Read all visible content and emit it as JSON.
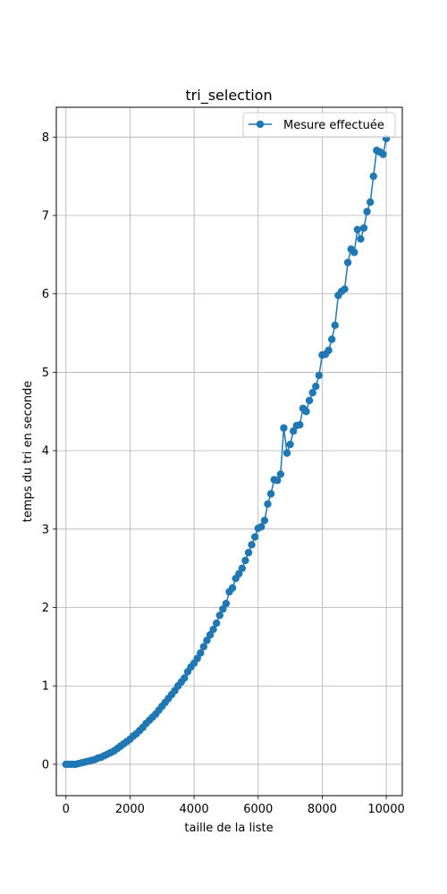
{
  "chart_data": {
    "type": "line",
    "title": "tri_selection",
    "xlabel": "taille de la liste",
    "ylabel": "temps du tri en seconde",
    "xlim": [
      -300,
      10500
    ],
    "ylim": [
      -0.4,
      8.38
    ],
    "xticks": [
      0,
      2000,
      4000,
      6000,
      8000,
      10000
    ],
    "yticks": [
      0,
      1,
      2,
      3,
      4,
      5,
      6,
      7,
      8
    ],
    "grid": true,
    "legend_position": "top-right",
    "colors": {
      "series": "#1f77b4",
      "grid": "#b0b0b0"
    },
    "series": [
      {
        "name": "Mesure effectuée",
        "marker": "circle",
        "points": [
          [
            0,
            0.0
          ],
          [
            100,
            0.0
          ],
          [
            200,
            0.0
          ],
          [
            300,
            0.0
          ],
          [
            400,
            0.01
          ],
          [
            500,
            0.02
          ],
          [
            600,
            0.03
          ],
          [
            700,
            0.04
          ],
          [
            800,
            0.05
          ],
          [
            900,
            0.06
          ],
          [
            1000,
            0.08
          ],
          [
            1100,
            0.09
          ],
          [
            1200,
            0.11
          ],
          [
            1300,
            0.13
          ],
          [
            1400,
            0.15
          ],
          [
            1500,
            0.17
          ],
          [
            1600,
            0.2
          ],
          [
            1700,
            0.23
          ],
          [
            1800,
            0.26
          ],
          [
            1900,
            0.29
          ],
          [
            2000,
            0.32
          ],
          [
            2100,
            0.36
          ],
          [
            2200,
            0.39
          ],
          [
            2300,
            0.43
          ],
          [
            2400,
            0.47
          ],
          [
            2500,
            0.52
          ],
          [
            2600,
            0.56
          ],
          [
            2700,
            0.6
          ],
          [
            2800,
            0.64
          ],
          [
            2900,
            0.69
          ],
          [
            3000,
            0.74
          ],
          [
            3100,
            0.79
          ],
          [
            3200,
            0.84
          ],
          [
            3300,
            0.89
          ],
          [
            3400,
            0.94
          ],
          [
            3500,
            1.0
          ],
          [
            3600,
            1.05
          ],
          [
            3700,
            1.1
          ],
          [
            3800,
            1.18
          ],
          [
            3900,
            1.24
          ],
          [
            4000,
            1.29
          ],
          [
            4100,
            1.35
          ],
          [
            4200,
            1.42
          ],
          [
            4300,
            1.5
          ],
          [
            4400,
            1.58
          ],
          [
            4500,
            1.65
          ],
          [
            4600,
            1.72
          ],
          [
            4700,
            1.8
          ],
          [
            4800,
            1.9
          ],
          [
            4900,
            1.98
          ],
          [
            5000,
            2.05
          ],
          [
            5100,
            2.2
          ],
          [
            5200,
            2.25
          ],
          [
            5300,
            2.37
          ],
          [
            5400,
            2.43
          ],
          [
            5500,
            2.5
          ],
          [
            5600,
            2.6
          ],
          [
            5700,
            2.7
          ],
          [
            5800,
            2.8
          ],
          [
            5900,
            2.9
          ],
          [
            6000,
            3.01
          ],
          [
            6100,
            3.03
          ],
          [
            6200,
            3.11
          ],
          [
            6300,
            3.32
          ],
          [
            6400,
            3.45
          ],
          [
            6500,
            3.63
          ],
          [
            6600,
            3.62
          ],
          [
            6700,
            3.7
          ],
          [
            6800,
            4.29
          ],
          [
            6900,
            3.97
          ],
          [
            7000,
            4.08
          ],
          [
            7100,
            4.25
          ],
          [
            7200,
            4.32
          ],
          [
            7300,
            4.33
          ],
          [
            7400,
            4.54
          ],
          [
            7500,
            4.5
          ],
          [
            7600,
            4.64
          ],
          [
            7700,
            4.74
          ],
          [
            7800,
            4.82
          ],
          [
            7900,
            4.96
          ],
          [
            8000,
            5.22
          ],
          [
            8100,
            5.23
          ],
          [
            8200,
            5.28
          ],
          [
            8300,
            5.42
          ],
          [
            8400,
            5.6
          ],
          [
            8500,
            5.98
          ],
          [
            8600,
            6.03
          ],
          [
            8700,
            6.06
          ],
          [
            8800,
            6.4
          ],
          [
            8900,
            6.57
          ],
          [
            9000,
            6.53
          ],
          [
            9100,
            6.82
          ],
          [
            9200,
            6.7
          ],
          [
            9300,
            6.84
          ],
          [
            9400,
            7.05
          ],
          [
            9500,
            7.17
          ],
          [
            9600,
            7.5
          ],
          [
            9700,
            7.83
          ],
          [
            9800,
            7.81
          ],
          [
            9900,
            7.78
          ],
          [
            10000,
            7.98
          ]
        ]
      }
    ]
  }
}
